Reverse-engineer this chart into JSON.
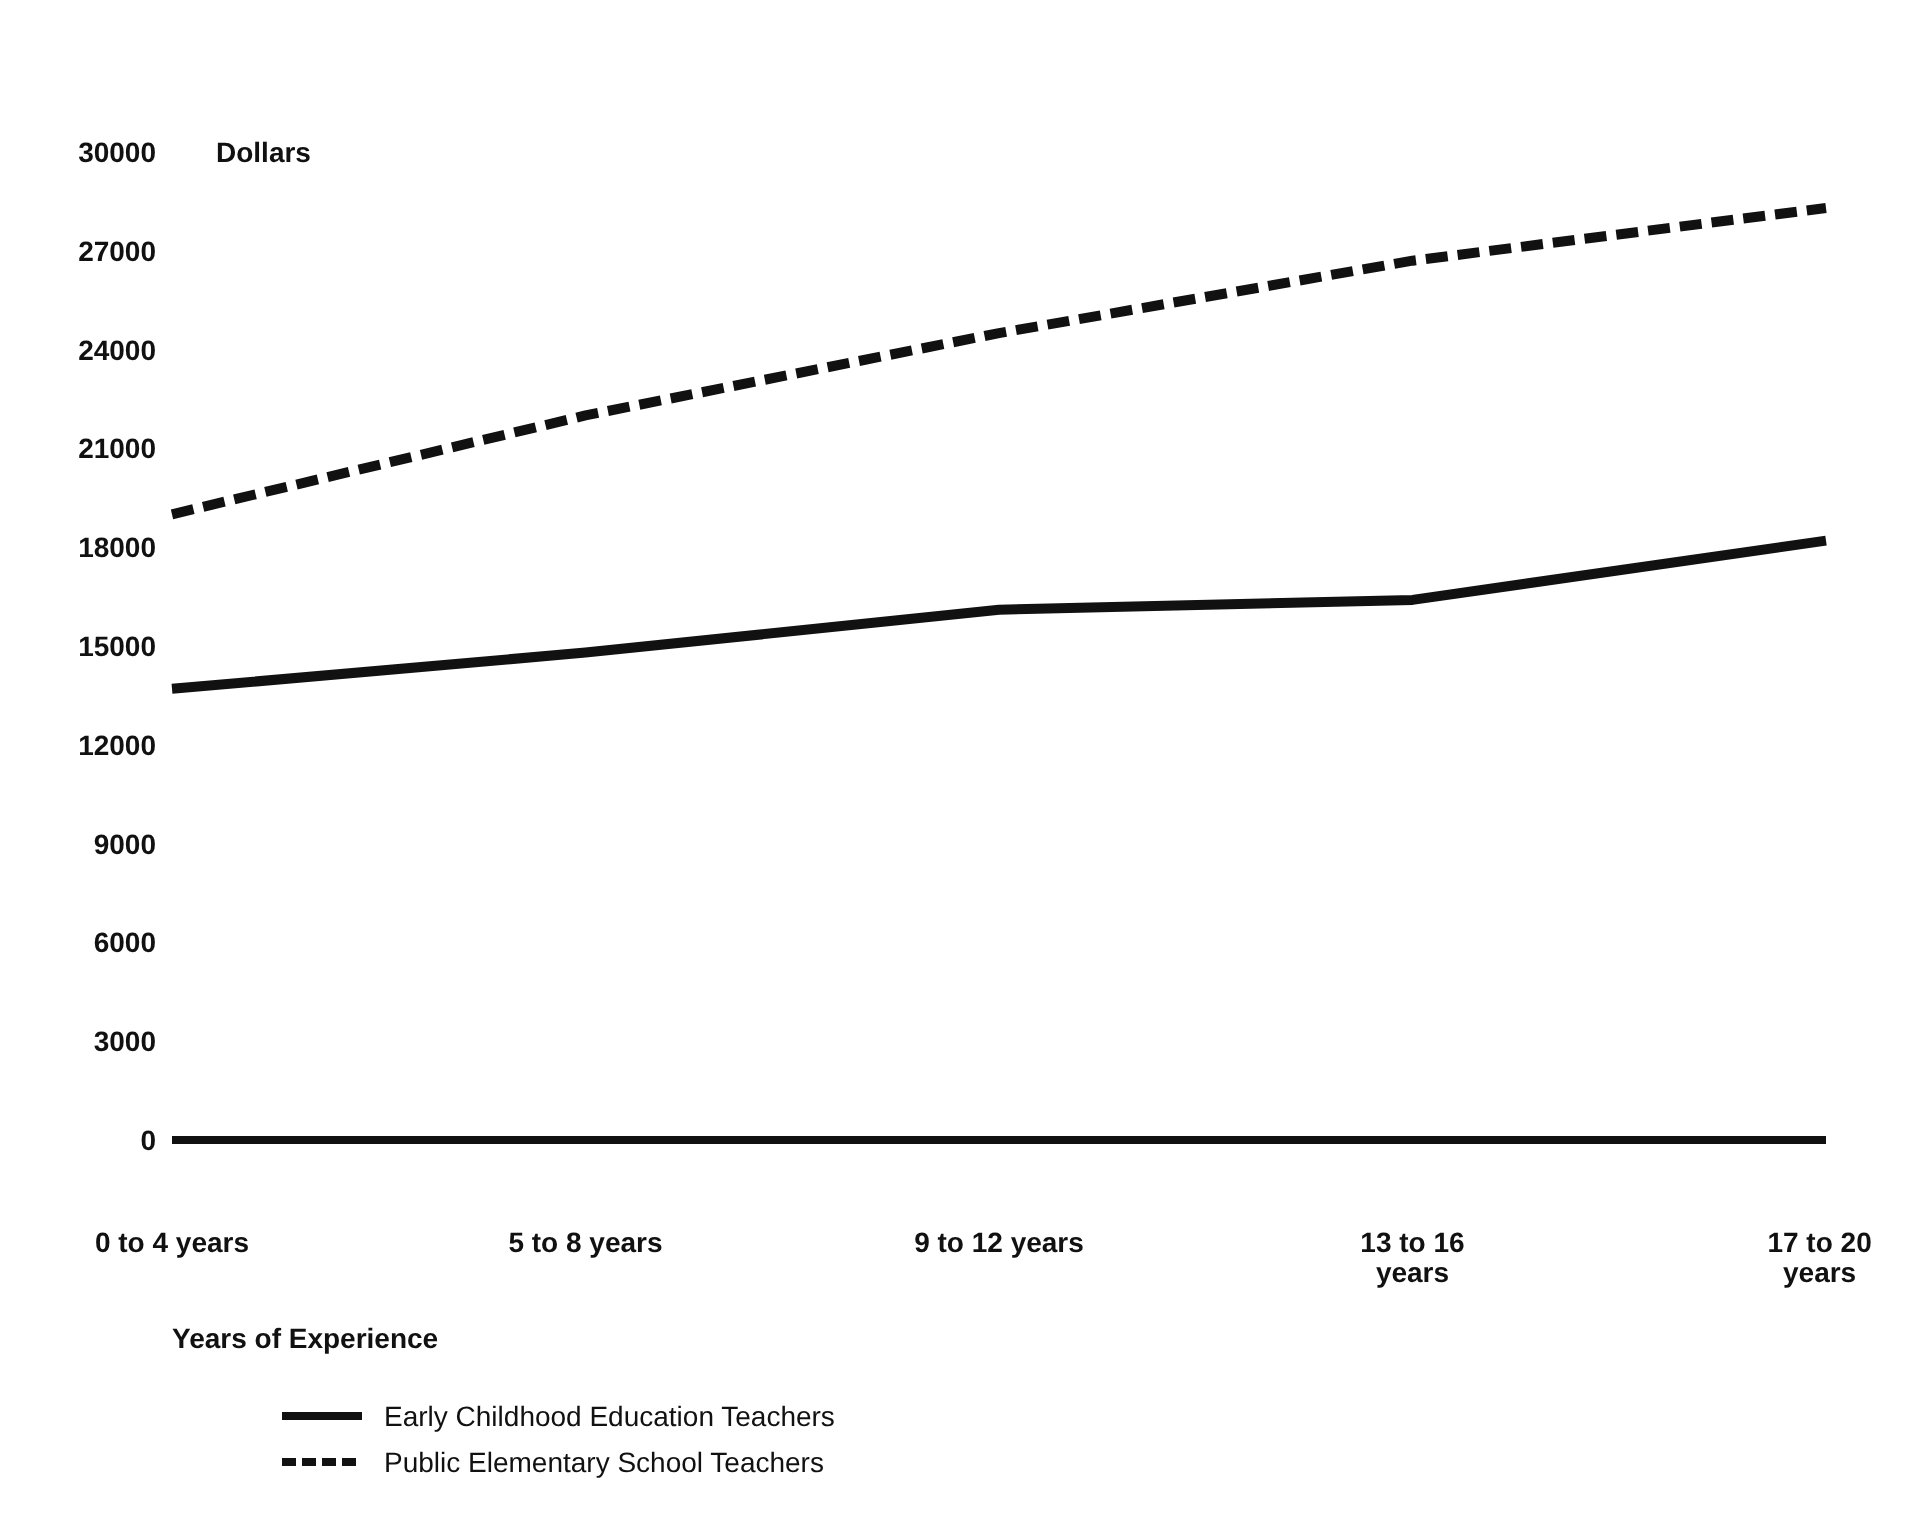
{
  "chart_data": {
    "type": "line",
    "ylabel": "Dollars",
    "xlabel": "Years of Experience",
    "categories": [
      "0 to 4 years",
      "5 to 8 years",
      "9 to 12 years",
      "13 to 16 years",
      "17 to 20 years"
    ],
    "series": [
      {
        "name": "Early Childhood Education Teachers",
        "color": "#111111",
        "line_style": "solid",
        "values": [
          13700,
          14800,
          16100,
          16400,
          18200
        ]
      },
      {
        "name": "Public Elementary School Teachers",
        "color": "#111111",
        "line_style": "dashed",
        "values": [
          19000,
          22000,
          24500,
          26700,
          28300
        ]
      }
    ],
    "ylim": [
      0,
      30000
    ],
    "yticks": [
      0,
      3000,
      6000,
      9000,
      12000,
      15000,
      18000,
      21000,
      24000,
      27000,
      30000
    ],
    "grid": false,
    "legend": "bottom",
    "marker": "none"
  }
}
